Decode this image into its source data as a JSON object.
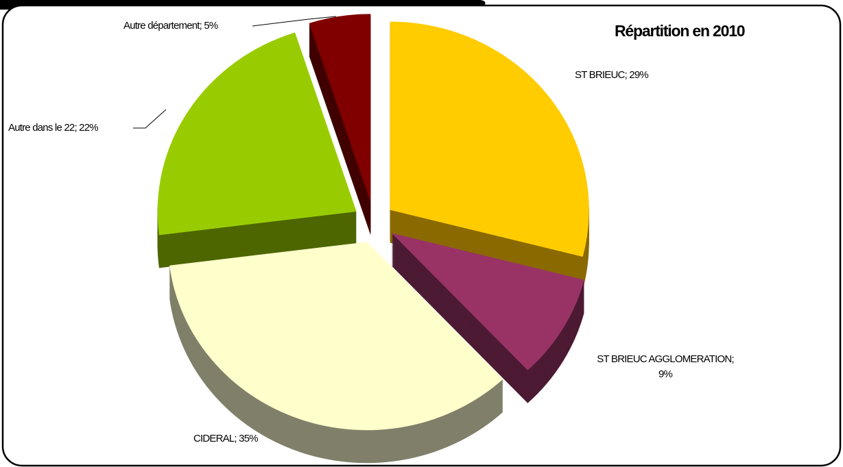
{
  "chart_data": {
    "type": "pie",
    "title": "Répartition en 2010",
    "values": [
      29,
      9,
      35,
      22,
      5
    ],
    "value_labels": [
      "ST BRIEUC; 29%",
      "ST BRIEUC AGGLOMERATION; 9%",
      "CIDERAL; 35%",
      "Autre dans le 22; 22%",
      "Autre département; 5%"
    ],
    "colors": [
      "#ffcc00",
      "#993366",
      "#ffffcc",
      "#99cc00",
      "#800000"
    ],
    "side_colors": [
      "#8a6a00",
      "#4d1a33",
      "#80806a",
      "#4d6600",
      "#400000"
    ]
  }
}
